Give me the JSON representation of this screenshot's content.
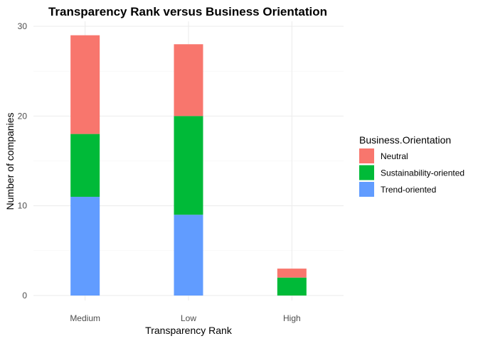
{
  "chart_data": {
    "type": "bar",
    "stacked": true,
    "title": "Transparency Rank versus Business Orientation",
    "xlabel": "Transparency Rank",
    "ylabel": "Number of companies",
    "categories": [
      "Medium",
      "Low",
      "High"
    ],
    "series": [
      {
        "name": "Trend-oriented",
        "color": "#619CFF",
        "values": [
          11,
          9,
          0
        ]
      },
      {
        "name": "Sustainability-oriented",
        "color": "#00BA38",
        "values": [
          7,
          11,
          2
        ]
      },
      {
        "name": "Neutral",
        "color": "#F8766D",
        "values": [
          11,
          8,
          1
        ]
      }
    ],
    "ylim": [
      0,
      30
    ],
    "yticks": [
      0,
      10,
      20,
      30
    ],
    "grid": true,
    "legend": {
      "title": "Business.Orientation",
      "position": "right",
      "order": [
        "Neutral",
        "Sustainability-oriented",
        "Trend-oriented"
      ]
    }
  }
}
